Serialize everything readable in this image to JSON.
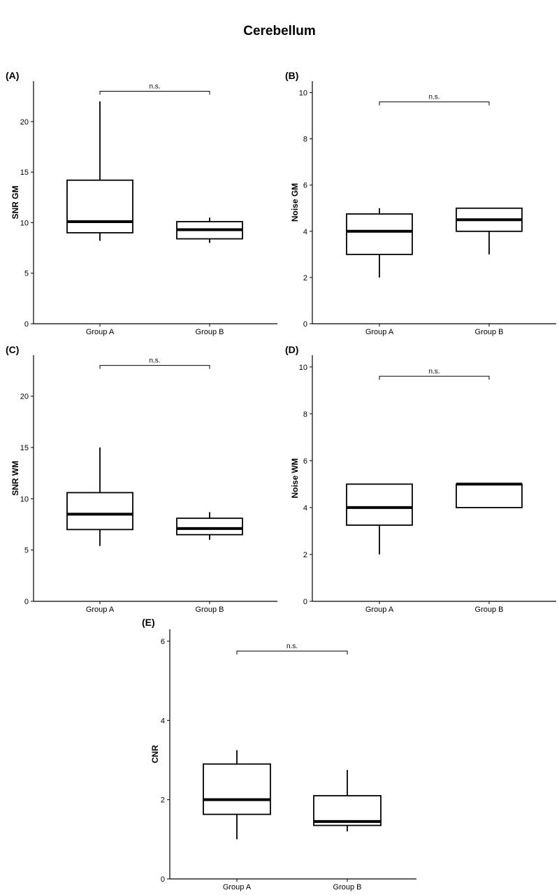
{
  "figure": {
    "title": "Cerebellum"
  },
  "chart_data": [
    {
      "type": "box",
      "panel": "(A)",
      "ylabel": "SNR GM",
      "ylim": [
        0,
        24
      ],
      "yticks": [
        0,
        5,
        10,
        15,
        20
      ],
      "categories": [
        "Group A",
        "Group B"
      ],
      "boxes": [
        {
          "lower_whisker": 8.2,
          "q1": 9.0,
          "median": 10.1,
          "q3": 14.2,
          "upper_whisker": 22.0
        },
        {
          "lower_whisker": 8.0,
          "q1": 8.4,
          "median": 9.3,
          "q3": 10.1,
          "upper_whisker": 10.5
        }
      ],
      "annotation": {
        "text": "n.s.",
        "y": 23.0
      }
    },
    {
      "type": "box",
      "panel": "(B)",
      "ylabel": "Noise GM",
      "ylim": [
        0,
        10.5
      ],
      "yticks": [
        0,
        2,
        4,
        6,
        8,
        10
      ],
      "categories": [
        "Group A",
        "Group B"
      ],
      "boxes": [
        {
          "lower_whisker": 2.0,
          "q1": 3.0,
          "median": 4.0,
          "q3": 4.75,
          "upper_whisker": 5.0
        },
        {
          "lower_whisker": 3.0,
          "q1": 4.0,
          "median": 4.5,
          "q3": 5.0,
          "upper_whisker": 5.0
        }
      ],
      "annotation": {
        "text": "n.s.",
        "y": 9.6
      }
    },
    {
      "type": "box",
      "panel": "(C)",
      "ylabel": "SNR WM",
      "ylim": [
        0,
        24
      ],
      "yticks": [
        0,
        5,
        10,
        15,
        20
      ],
      "categories": [
        "Group A",
        "Group B"
      ],
      "boxes": [
        {
          "lower_whisker": 5.4,
          "q1": 7.0,
          "median": 8.5,
          "q3": 10.6,
          "upper_whisker": 15.0
        },
        {
          "lower_whisker": 6.0,
          "q1": 6.5,
          "median": 7.1,
          "q3": 8.1,
          "upper_whisker": 8.7
        }
      ],
      "annotation": {
        "text": "n.s.",
        "y": 23.0
      }
    },
    {
      "type": "box",
      "panel": "(D)",
      "ylabel": "Noise WM",
      "ylim": [
        0,
        10.5
      ],
      "yticks": [
        0,
        2,
        4,
        6,
        8,
        10
      ],
      "categories": [
        "Group A",
        "Group B"
      ],
      "boxes": [
        {
          "lower_whisker": 2.0,
          "q1": 3.25,
          "median": 4.0,
          "q3": 5.0,
          "upper_whisker": 5.0
        },
        {
          "lower_whisker": 4.0,
          "q1": 4.0,
          "median": 5.0,
          "q3": 5.0,
          "upper_whisker": 5.0
        }
      ],
      "annotation": {
        "text": "n.s.",
        "y": 9.6
      }
    },
    {
      "type": "box",
      "panel": "(E)",
      "ylabel": "CNR",
      "ylim": [
        0,
        6.3
      ],
      "yticks": [
        0,
        2,
        4,
        6
      ],
      "categories": [
        "Group A",
        "Group B"
      ],
      "boxes": [
        {
          "lower_whisker": 1.0,
          "q1": 1.63,
          "median": 2.0,
          "q3": 2.9,
          "upper_whisker": 3.25
        },
        {
          "lower_whisker": 1.2,
          "q1": 1.35,
          "median": 1.45,
          "q3": 2.1,
          "upper_whisker": 2.75
        }
      ],
      "annotation": {
        "text": "n.s.",
        "y": 5.75
      }
    }
  ]
}
